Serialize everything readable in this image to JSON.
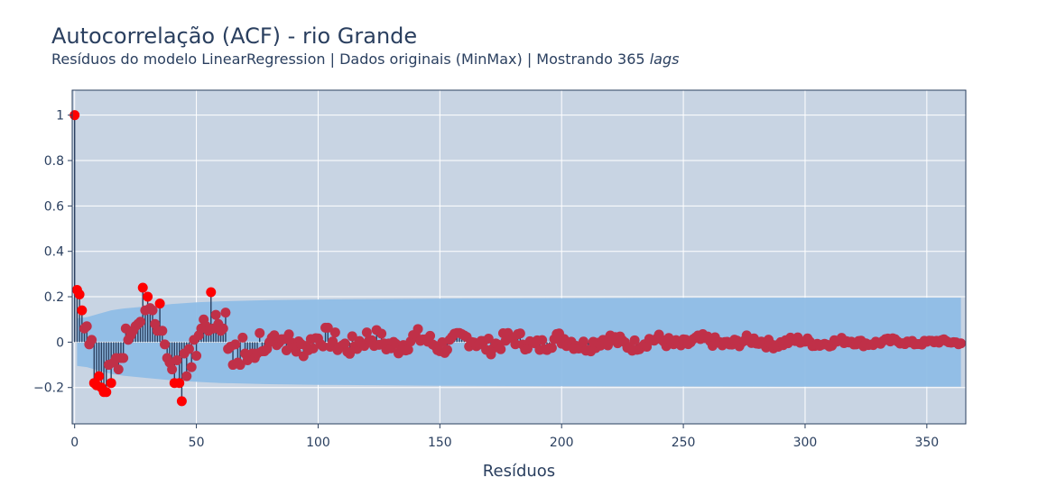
{
  "chart_data": {
    "type": "scatter",
    "title": "Autocorrelação (ACF) - rio Grande",
    "subtitle": "Resíduos do modelo LinearRegression | Dados originais (MinMax) | Mostrando 365",
    "subtitle_suffix": "lags",
    "xlabel": "Resíduos",
    "ylabel": "",
    "xlim": [
      -1,
      366
    ],
    "ylim": [
      -0.36,
      1.11
    ],
    "xticks": [
      0,
      50,
      100,
      150,
      200,
      250,
      300,
      350
    ],
    "yticks": [
      -0.2,
      0,
      0.2,
      0.4,
      0.6,
      0.8,
      1
    ],
    "ytick_labels": [
      "−0.2",
      "0",
      "0.2",
      "0.4",
      "0.6",
      "0.8",
      "1"
    ],
    "grid": true,
    "colors": {
      "plot_bg": "#c8d4e3",
      "grid": "#ffffff",
      "confidence_band": "#8fbde6",
      "stem": "#2a3f5f",
      "marker_significant": "#ff0000",
      "marker": "#c03048"
    },
    "confidence_band": {
      "lag": [
        1,
        5,
        10,
        15,
        20,
        30,
        40,
        50,
        60,
        80,
        100,
        150,
        200,
        250,
        300,
        364
      ],
      "upper": [
        0.105,
        0.11,
        0.125,
        0.14,
        0.148,
        0.158,
        0.168,
        0.175,
        0.18,
        0.185,
        0.188,
        0.192,
        0.194,
        0.195,
        0.196,
        0.196
      ]
    },
    "lags_shown": 365,
    "acf_head": {
      "lag": [
        0,
        1,
        2,
        3,
        4,
        5,
        6,
        7,
        8,
        9,
        10,
        11,
        12,
        13,
        14,
        15,
        16,
        17,
        18,
        19,
        20,
        21,
        22,
        23,
        24,
        25,
        26,
        27,
        28,
        29,
        30,
        31,
        32,
        33,
        34,
        35,
        36,
        37,
        38,
        39,
        40,
        41,
        42,
        43,
        44,
        45,
        46,
        47,
        48,
        49,
        50,
        51,
        52,
        53,
        54,
        55,
        56,
        57,
        58,
        59,
        60,
        61,
        62,
        63,
        64,
        65,
        66,
        67,
        68,
        69,
        70,
        71,
        72,
        73,
        74,
        75,
        76,
        77,
        78,
        79,
        80
      ],
      "value": [
        1.0,
        0.23,
        0.21,
        0.14,
        0.06,
        0.07,
        -0.01,
        0.01,
        -0.18,
        -0.19,
        -0.15,
        -0.2,
        -0.22,
        -0.22,
        -0.1,
        -0.18,
        -0.09,
        -0.07,
        -0.12,
        -0.07,
        -0.07,
        0.06,
        0.01,
        0.03,
        0.05,
        0.07,
        0.08,
        0.09,
        0.24,
        0.14,
        0.2,
        0.15,
        0.14,
        0.08,
        0.05,
        0.17,
        0.05,
        -0.01,
        -0.07,
        -0.09,
        -0.12,
        -0.18,
        -0.08,
        -0.18,
        -0.26,
        -0.05,
        -0.15,
        -0.03,
        -0.11,
        0.01,
        -0.06,
        0.03,
        0.06,
        0.1,
        0.07,
        0.05,
        0.22,
        0.06,
        0.12,
        0.08,
        0.05,
        0.06,
        0.13,
        -0.03,
        -0.02,
        -0.1,
        -0.01,
        -0.09,
        -0.1,
        0.02,
        -0.05,
        -0.08,
        -0.06,
        -0.05,
        -0.07,
        -0.05,
        0.04,
        -0.04,
        -0.04,
        -0.03,
        0.0
      ]
    },
    "acf_tail_model": {
      "start_lag": 81,
      "end_lag": 364,
      "initial_amplitude": 0.05,
      "final_amplitude": 0.008,
      "seed": 7
    }
  }
}
